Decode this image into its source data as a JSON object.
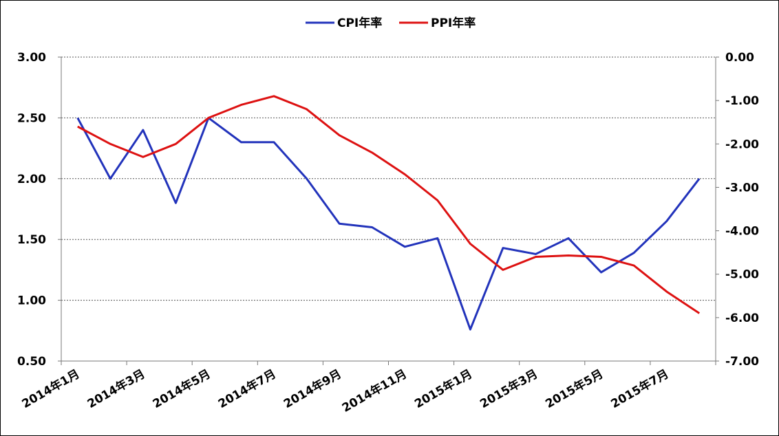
{
  "chart_data": {
    "type": "line",
    "title": "",
    "xlabel": "",
    "ylabel_left": "",
    "ylabel_right": "",
    "legend_position": "top-center",
    "grid": "horizontal dashed",
    "x": [
      "2014年1月",
      "2014年2月",
      "2014年3月",
      "2014年4月",
      "2014年5月",
      "2014年6月",
      "2014年7月",
      "2014年8月",
      "2014年9月",
      "2014年10月",
      "2014年11月",
      "2014年12月",
      "2015年1月",
      "2015年2月",
      "2015年3月",
      "2015年4月",
      "2015年5月",
      "2015年6月",
      "2015年7月",
      "2015年8月"
    ],
    "x_tick_labels": [
      "2014年1月",
      "2014年3月",
      "2014年5月",
      "2014年7月",
      "2014年9月",
      "2014年11月",
      "2015年1月",
      "2015年3月",
      "2015年5月",
      "2015年7月"
    ],
    "y_left": {
      "min": 0.5,
      "max": 3.0,
      "ticks": [
        "0.50",
        "1.00",
        "1.50",
        "2.00",
        "2.50",
        "3.00"
      ]
    },
    "y_right": {
      "min": -7.0,
      "max": 0.0,
      "ticks": [
        "-7.00",
        "-6.00",
        "-5.00",
        "-4.00",
        "-3.00",
        "-2.00",
        "-1.00",
        "0.00"
      ]
    },
    "series": [
      {
        "name": "CPI年率",
        "axis": "left",
        "color": "#2233bb",
        "values": [
          2.5,
          2.0,
          2.4,
          1.8,
          2.5,
          2.3,
          2.3,
          2.0,
          1.63,
          1.6,
          1.44,
          1.51,
          0.76,
          1.43,
          1.38,
          1.51,
          1.23,
          1.39,
          1.65,
          2.0
        ]
      },
      {
        "name": "PPI年率",
        "axis": "right",
        "color": "#dd1111",
        "values": [
          -1.6,
          -2.0,
          -2.3,
          -2.0,
          -1.4,
          -1.1,
          -0.9,
          -1.2,
          -1.8,
          -2.2,
          -2.7,
          -3.3,
          -4.3,
          -4.9,
          -4.6,
          -4.57,
          -4.6,
          -4.8,
          -5.4,
          -5.9
        ]
      }
    ]
  }
}
